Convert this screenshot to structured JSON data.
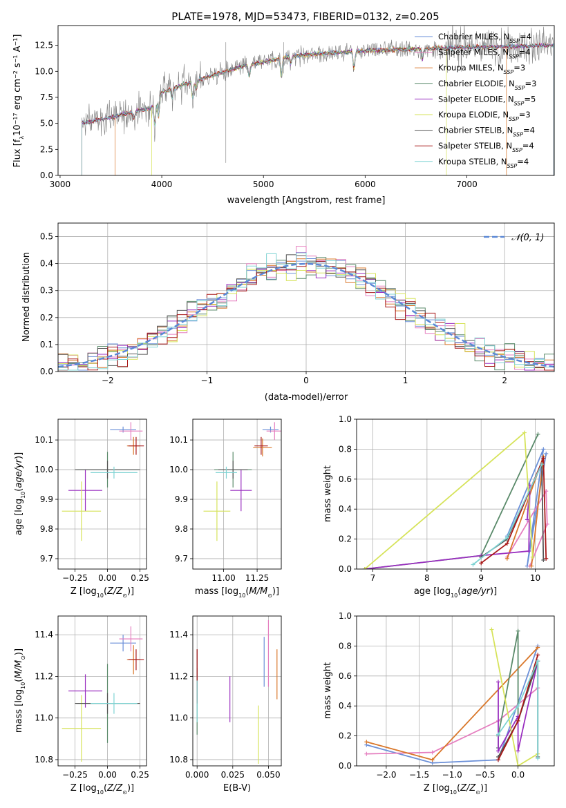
{
  "title": "PLATE=1978, MJD=53473, FIBERID=0132, z=0.205",
  "colors": {
    "Chabrier MILES": "#6a8fd8",
    "Salpeter MILES": "#e57ebf",
    "Kroupa MILES": "#d9772a",
    "Chabrier ELODIE": "#5a8a6a",
    "Salpeter ELODIE": "#9a2fc0",
    "Kroupa ELODIE": "#d6e35a",
    "Chabrier STELIB": "#555555",
    "Salpeter STELIB": "#a81818",
    "Kroupa STELIB": "#7fd3d3",
    "normal": "#5b88d6"
  },
  "legend_main": [
    {
      "label": "Chabrier MILES, N",
      "sub": "SSP",
      "tail": "=4"
    },
    {
      "label": "Salpeter MILES, N",
      "sub": "SSP",
      "tail": "=4"
    },
    {
      "label": "Kroupa MILES, N",
      "sub": "SSP",
      "tail": "=3"
    },
    {
      "label": "Chabrier ELODIE, N",
      "sub": "SSP",
      "tail": "=3"
    },
    {
      "label": "Salpeter ELODIE, N",
      "sub": "SSP",
      "tail": "=5"
    },
    {
      "label": "Kroupa ELODIE, N",
      "sub": "SSP",
      "tail": "=3"
    },
    {
      "label": "Chabrier STELIB, N",
      "sub": "SSP",
      "tail": "=4"
    },
    {
      "label": "Salpeter STELIB, N",
      "sub": "SSP",
      "tail": "=4"
    },
    {
      "label": "Kroupa STELIB, N",
      "sub": "SSP",
      "tail": "=4"
    }
  ],
  "chart_data": [
    {
      "type": "line",
      "title": "PLATE=1978, MJD=53473, FIBERID=0132, z=0.205",
      "xlabel": "wavelength [Angstrom, rest frame]",
      "ylabel": "Flux [fλ10⁻¹⁷ erg cm⁻² s⁻¹ A⁻¹]",
      "xlim": [
        2980,
        7860
      ],
      "ylim": [
        0,
        14.4
      ],
      "xticks": [
        "3000",
        "4000",
        "5000",
        "6000",
        "7000"
      ],
      "yticks": [
        "0.0",
        "2.5",
        "5.0",
        "7.5",
        "10.0",
        "12.5"
      ],
      "data_wavelength_range": [
        3215,
        7855
      ],
      "model_cutoffs": {
        "Kroupa MILES": [
          3540,
          7390
        ],
        "Kroupa ELODIE": [
          3900,
          6800
        ]
      },
      "continuum_points": [
        [
          3215,
          5.0
        ],
        [
          3500,
          5.6
        ],
        [
          3900,
          6.5
        ],
        [
          4000,
          8.0
        ],
        [
          4300,
          9.0
        ],
        [
          4800,
          10.5
        ],
        [
          5300,
          11.5
        ],
        [
          6000,
          12.0
        ],
        [
          7000,
          12.3
        ],
        [
          7855,
          12.5
        ]
      ]
    },
    {
      "type": "bar",
      "xlabel": "(data-model)/error",
      "ylabel": "Normed distribution",
      "xlim": [
        -2.5,
        2.5
      ],
      "ylim": [
        0,
        0.55
      ],
      "xticks": [
        "−2",
        "−1",
        "0",
        "1",
        "2"
      ],
      "yticks": [
        "0.0",
        "0.1",
        "0.2",
        "0.3",
        "0.4",
        "0.5"
      ],
      "legend": "𝒩(0, 1)",
      "bin_width": 0.1,
      "reference_curve": "normal(0,1) pdf"
    },
    {
      "type": "scatter",
      "xlabel": "Z [log₁₀(Z/Z⊙)]",
      "ylabel": "age  [log₁₀(age/yr)]",
      "xlim": [
        -0.38,
        0.3
      ],
      "ylim": [
        9.665,
        10.17
      ],
      "xticks": [
        "−0.25",
        "0.00",
        "0.25"
      ],
      "yticks": [
        "9.7",
        "9.8",
        "9.9",
        "10.0",
        "10.1"
      ],
      "points": [
        {
          "series": "Chabrier MILES",
          "x": 0.12,
          "xerr": 0.1,
          "y": 10.135,
          "yerr": 0.01
        },
        {
          "series": "Salpeter MILES",
          "x": 0.18,
          "xerr": 0.09,
          "y": 10.13,
          "yerr": 0.03
        },
        {
          "series": "Kroupa MILES",
          "x": 0.2,
          "xerr": 0.05,
          "y": 10.08,
          "yerr": 0.03
        },
        {
          "series": "Chabrier ELODIE",
          "x": 0.0,
          "xerr": 0.24,
          "y": 10.0,
          "yerr": 0.06
        },
        {
          "series": "Salpeter ELODIE",
          "x": -0.17,
          "xerr": 0.13,
          "y": 9.93,
          "yerr": 0.07
        },
        {
          "series": "Kroupa ELODIE",
          "x": -0.2,
          "xerr": 0.15,
          "y": 9.86,
          "yerr": 0.1
        },
        {
          "series": "Chabrier STELIB",
          "x": 0.0,
          "xerr": 0.25,
          "y": 10.0,
          "yerr": 0.03
        },
        {
          "series": "Salpeter STELIB",
          "x": 0.22,
          "xerr": 0.06,
          "y": 10.08,
          "yerr": 0.03
        },
        {
          "series": "Kroupa STELIB",
          "x": 0.05,
          "xerr": 0.18,
          "y": 9.99,
          "yerr": 0.02
        }
      ]
    },
    {
      "type": "scatter",
      "xlabel": "mass [log₁₀(M/M⊙)]",
      "ylabel": "",
      "xlim": [
        10.77,
        11.43
      ],
      "ylim": [
        9.665,
        10.17
      ],
      "xticks": [
        "11.00",
        "11.25"
      ],
      "yticks": [
        "9.7",
        "9.8",
        "9.9",
        "10.0",
        "10.1"
      ],
      "points": [
        {
          "series": "Chabrier MILES",
          "x": 11.35,
          "xerr": 0.06,
          "y": 10.135,
          "yerr": 0.01
        },
        {
          "series": "Salpeter MILES",
          "x": 11.38,
          "xerr": 0.06,
          "y": 10.13,
          "yerr": 0.03
        },
        {
          "series": "Kroupa MILES",
          "x": 11.29,
          "xerr": 0.07,
          "y": 10.075,
          "yerr": 0.03
        },
        {
          "series": "Chabrier ELODIE",
          "x": 11.07,
          "xerr": 0.14,
          "y": 10.0,
          "yerr": 0.06
        },
        {
          "series": "Salpeter ELODIE",
          "x": 11.13,
          "xerr": 0.08,
          "y": 9.93,
          "yerr": 0.07
        },
        {
          "series": "Kroupa ELODIE",
          "x": 10.95,
          "xerr": 0.1,
          "y": 9.86,
          "yerr": 0.1
        },
        {
          "series": "Chabrier STELIB",
          "x": 11.07,
          "xerr": 0.11,
          "y": 10.0,
          "yerr": 0.03
        },
        {
          "series": "Salpeter STELIB",
          "x": 11.28,
          "xerr": 0.05,
          "y": 10.08,
          "yerr": 0.03
        },
        {
          "series": "Kroupa STELIB",
          "x": 11.02,
          "xerr": 0.08,
          "y": 9.99,
          "yerr": 0.02
        }
      ]
    },
    {
      "type": "line",
      "xlabel": "age  [log₁₀(age/yr)]",
      "ylabel": "mass weight",
      "xlim": [
        6.7,
        10.35
      ],
      "ylim": [
        0,
        1.0
      ],
      "xticks": [
        "7",
        "8",
        "9",
        "10"
      ],
      "yticks": [
        "0.0",
        "0.2",
        "0.4",
        "0.6",
        "0.8",
        "1.0"
      ],
      "series": [
        {
          "name": "Chabrier MILES",
          "x": [
            9.48,
            10.15,
            9.85,
            10.2
          ],
          "y": [
            0.22,
            0.8,
            0.02,
            0.77
          ]
        },
        {
          "name": "Salpeter MILES",
          "x": [
            9.48,
            10.2,
            10.22,
            9.9
          ],
          "y": [
            0.08,
            0.52,
            0.3,
            0.02
          ]
        },
        {
          "name": "Kroupa MILES",
          "x": [
            9.48,
            10.15,
            9.93
          ],
          "y": [
            0.07,
            0.75,
            0.02
          ]
        },
        {
          "name": "Chabrier ELODIE",
          "x": [
            6.85,
            9.0,
            10.05
          ],
          "y": [
            0.0,
            0.09,
            0.9
          ]
        },
        {
          "name": "Salpeter ELODIE",
          "x": [
            6.85,
            9.0,
            9.88,
            9.9,
            9.85
          ],
          "y": [
            0.0,
            0.09,
            0.12,
            0.56,
            0.33
          ]
        },
        {
          "name": "Kroupa ELODIE",
          "x": [
            6.85,
            9.8,
            9.95
          ],
          "y": [
            0.0,
            0.91,
            0.08
          ]
        },
        {
          "name": "Chabrier STELIB",
          "x": [
            9.0,
            9.48,
            10.12,
            10.15
          ],
          "y": [
            0.08,
            0.2,
            0.7,
            0.06
          ]
        },
        {
          "name": "Salpeter STELIB",
          "x": [
            9.0,
            9.48,
            10.15,
            10.2
          ],
          "y": [
            0.04,
            0.17,
            0.74,
            0.07
          ]
        },
        {
          "name": "Kroupa STELIB",
          "x": [
            8.85,
            9.48,
            10.12
          ],
          "y": [
            0.03,
            0.21,
            0.7
          ]
        }
      ]
    },
    {
      "type": "scatter",
      "xlabel": "Z [log₁₀(Z/Z⊙)]",
      "ylabel": "mass [log₁₀(M/M⊙)]",
      "xlim": [
        -0.38,
        0.3
      ],
      "ylim": [
        10.77,
        11.49
      ],
      "xticks": [
        "−0.25",
        "0.00",
        "0.25"
      ],
      "yticks": [
        "10.8",
        "11.0",
        "11.2",
        "11.4"
      ],
      "points": [
        {
          "series": "Chabrier MILES",
          "x": 0.12,
          "xerr": 0.1,
          "y": 11.36,
          "yerr": 0.04
        },
        {
          "series": "Salpeter MILES",
          "x": 0.18,
          "xerr": 0.09,
          "y": 11.38,
          "yerr": 0.06
        },
        {
          "series": "Kroupa MILES",
          "x": 0.2,
          "xerr": 0.05,
          "y": 11.28,
          "yerr": 0.07
        },
        {
          "series": "Chabrier ELODIE",
          "x": 0.0,
          "xerr": 0.24,
          "y": 11.07,
          "yerr": 0.19
        },
        {
          "series": "Salpeter ELODIE",
          "x": -0.17,
          "xerr": 0.13,
          "y": 11.13,
          "yerr": 0.08
        },
        {
          "series": "Kroupa ELODIE",
          "x": -0.2,
          "xerr": 0.15,
          "y": 10.95,
          "yerr": 0.16
        },
        {
          "series": "Chabrier STELIB",
          "x": 0.0,
          "xerr": 0.25,
          "y": 11.07,
          "yerr": 0.05
        },
        {
          "series": "Salpeter STELIB",
          "x": 0.22,
          "xerr": 0.06,
          "y": 11.28,
          "yerr": 0.05
        },
        {
          "series": "Kroupa STELIB",
          "x": 0.05,
          "xerr": 0.18,
          "y": 11.07,
          "yerr": 0.05
        }
      ]
    },
    {
      "type": "scatter",
      "xlabel": "E(B-V)",
      "ylabel": "",
      "xlim": [
        -0.003,
        0.059
      ],
      "ylim": [
        10.77,
        11.49
      ],
      "xticks": [
        "0.000",
        "0.025",
        "0.050"
      ],
      "yticks": [
        "10.8",
        "11.0",
        "11.2",
        "11.4"
      ],
      "points": [
        {
          "series": "Chabrier MILES",
          "x": 0.047,
          "y": 11.27,
          "yerr": 0.12
        },
        {
          "series": "Salpeter MILES",
          "x": 0.05,
          "y": 11.31,
          "yerr": 0.16
        },
        {
          "series": "Kroupa MILES",
          "x": 0.056,
          "y": 11.21,
          "yerr": 0.12
        },
        {
          "series": "Chabrier ELODIE",
          "x": 0.0,
          "y": 11.08,
          "yerr": 0.16
        },
        {
          "series": "Salpeter ELODIE",
          "x": 0.023,
          "y": 11.09,
          "yerr": 0.11
        },
        {
          "series": "Kroupa ELODIE",
          "x": 0.043,
          "y": 10.92,
          "yerr": 0.14
        },
        {
          "series": "Chabrier STELIB",
          "x": 0.0,
          "y": 11.2,
          "yerr": 0.13
        },
        {
          "series": "Salpeter STELIB",
          "x": 0.0,
          "y": 11.2,
          "yerr": 0.13
        },
        {
          "series": "Kroupa STELIB",
          "x": 0.0,
          "y": 11.08,
          "yerr": 0.1
        }
      ]
    },
    {
      "type": "line",
      "xlabel": "Z [log₁₀(Z/Z⊙)]",
      "ylabel": "mass weight",
      "xlim": [
        -2.45,
        0.55
      ],
      "ylim": [
        0,
        1.0
      ],
      "xticks": [
        "−2.0",
        "−1.5",
        "−1.0",
        "−0.5",
        "0.0"
      ],
      "yticks": [
        "0.0",
        "0.2",
        "0.4",
        "0.6",
        "0.8",
        "1.0"
      ],
      "series": [
        {
          "name": "Chabrier MILES",
          "x": [
            -2.3,
            -1.3,
            -0.3,
            0.3
          ],
          "y": [
            0.14,
            0.02,
            0.04,
            0.8
          ]
        },
        {
          "name": "Salpeter MILES",
          "x": [
            -2.3,
            -1.3,
            -0.3,
            0.3
          ],
          "y": [
            0.08,
            0.09,
            0.3,
            0.52
          ]
        },
        {
          "name": "Kroupa MILES",
          "x": [
            -2.3,
            -1.3,
            0.3
          ],
          "y": [
            0.16,
            0.04,
            0.79
          ]
        },
        {
          "name": "Chabrier ELODIE",
          "x": [
            -0.3,
            -0.3,
            0.0,
            0.0,
            0.3
          ],
          "y": [
            0.12,
            0.2,
            0.9,
            0.3,
            0.7
          ]
        },
        {
          "name": "Salpeter ELODIE",
          "x": [
            -0.3,
            -0.3,
            0.0,
            0.0,
            0.3
          ],
          "y": [
            0.56,
            0.1,
            0.33,
            0.1,
            0.7
          ]
        },
        {
          "name": "Kroupa ELODIE",
          "x": [
            -0.4,
            0.0,
            0.3
          ],
          "y": [
            0.91,
            0.0,
            0.08
          ]
        },
        {
          "name": "Chabrier STELIB",
          "x": [
            -0.3,
            0.0,
            0.3,
            0.3
          ],
          "y": [
            0.06,
            0.3,
            0.7,
            0.06
          ]
        },
        {
          "name": "Salpeter STELIB",
          "x": [
            -0.3,
            0.0,
            0.3
          ],
          "y": [
            0.04,
            0.3,
            0.74
          ]
        },
        {
          "name": "Kroupa STELIB",
          "x": [
            -0.3,
            0.0,
            0.3,
            0.3
          ],
          "y": [
            0.21,
            0.4,
            0.7,
            0.05
          ]
        }
      ]
    }
  ]
}
